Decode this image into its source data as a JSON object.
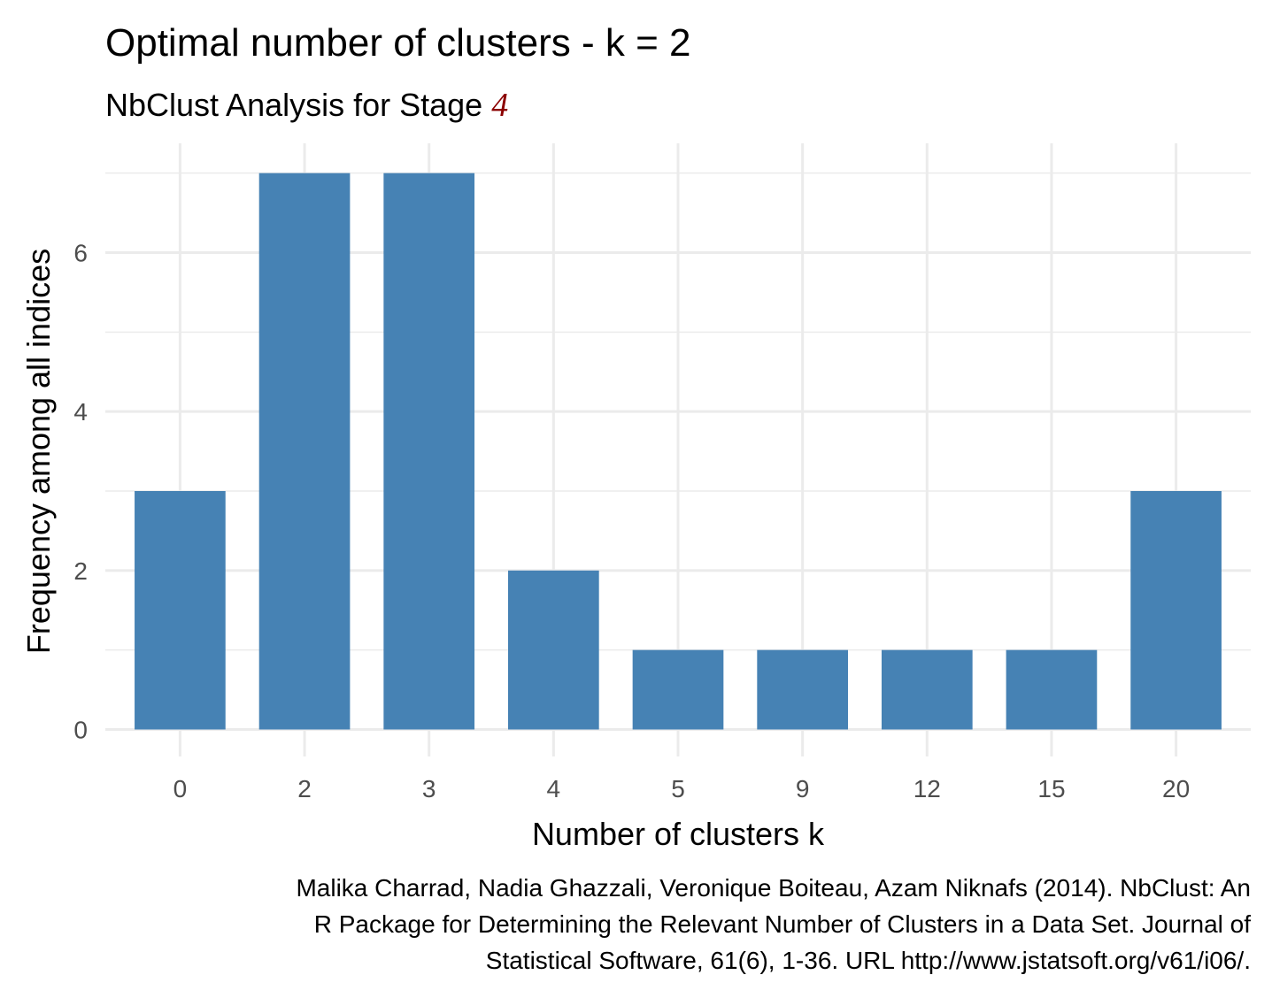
{
  "chart_data": {
    "type": "bar",
    "title": "Optimal number of clusters - k = 2",
    "subtitle_prefix": "NbClust Analysis for Stage ",
    "subtitle_stage": "4",
    "xlabel": "Number of clusters k",
    "ylabel": "Frequency among all indices",
    "categories": [
      "0",
      "2",
      "3",
      "4",
      "5",
      "9",
      "12",
      "15",
      "20"
    ],
    "values": [
      3,
      7,
      7,
      2,
      1,
      1,
      1,
      1,
      3
    ],
    "ylim": [
      0,
      7.35
    ],
    "y_ticks": [
      "0",
      "2",
      "4",
      "6"
    ],
    "grid": true,
    "legend": "none",
    "bar_color": "#4682B4",
    "stage_color": "#8B0000",
    "caption_lines": [
      "Malika Charrad, Nadia Ghazzali, Veronique Boiteau, Azam Niknafs (2014). NbClust: An",
      "R Package for Determining the Relevant Number of Clusters in a Data Set. Journal of",
      "Statistical Software, 61(6), 1-36. URL http://www.jstatsoft.org/v61/i06/."
    ]
  }
}
